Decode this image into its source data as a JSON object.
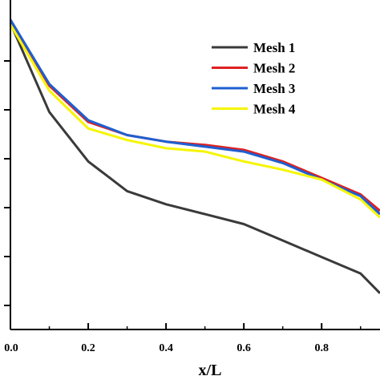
{
  "chart_data": {
    "type": "line",
    "xlabel": "x/L",
    "ylabel": "",
    "xlim": [
      0.0,
      0.95
    ],
    "ylim": [
      0,
      1
    ],
    "x_ticks": [
      "0.0",
      "0.2",
      "0.4",
      "0.6",
      "0.8"
    ],
    "x_tick_values": [
      0.0,
      0.2,
      0.4,
      0.6,
      0.8
    ],
    "y_tick_count": 6,
    "legend_position": "top-right",
    "grid": false,
    "series": [
      {
        "name": "Mesh 1",
        "color": "#3a3a3a",
        "x": [
          0.0,
          0.1,
          0.2,
          0.3,
          0.4,
          0.5,
          0.6,
          0.7,
          0.8,
          0.9,
          0.95
        ],
        "y": [
          0.93,
          0.66,
          0.51,
          0.42,
          0.38,
          0.35,
          0.32,
          0.27,
          0.22,
          0.17,
          0.11
        ]
      },
      {
        "name": "Mesh 2",
        "color": "#e02020",
        "x": [
          0.0,
          0.1,
          0.2,
          0.3,
          0.4,
          0.5,
          0.6,
          0.7,
          0.8,
          0.9,
          0.95
        ],
        "y": [
          0.94,
          0.74,
          0.63,
          0.59,
          0.57,
          0.56,
          0.545,
          0.51,
          0.46,
          0.41,
          0.36
        ]
      },
      {
        "name": "Mesh 3",
        "color": "#1e5fd0",
        "x": [
          0.0,
          0.1,
          0.2,
          0.3,
          0.4,
          0.5,
          0.6,
          0.7,
          0.8,
          0.9,
          0.95
        ],
        "y": [
          0.94,
          0.745,
          0.635,
          0.59,
          0.57,
          0.555,
          0.54,
          0.505,
          0.455,
          0.405,
          0.35
        ]
      },
      {
        "name": "Mesh 4",
        "color": "#f5f500",
        "x": [
          0.0,
          0.1,
          0.2,
          0.3,
          0.4,
          0.5,
          0.6,
          0.7,
          0.8,
          0.9,
          0.95
        ],
        "y": [
          0.925,
          0.725,
          0.61,
          0.575,
          0.55,
          0.54,
          0.51,
          0.485,
          0.455,
          0.395,
          0.34
        ]
      }
    ]
  }
}
